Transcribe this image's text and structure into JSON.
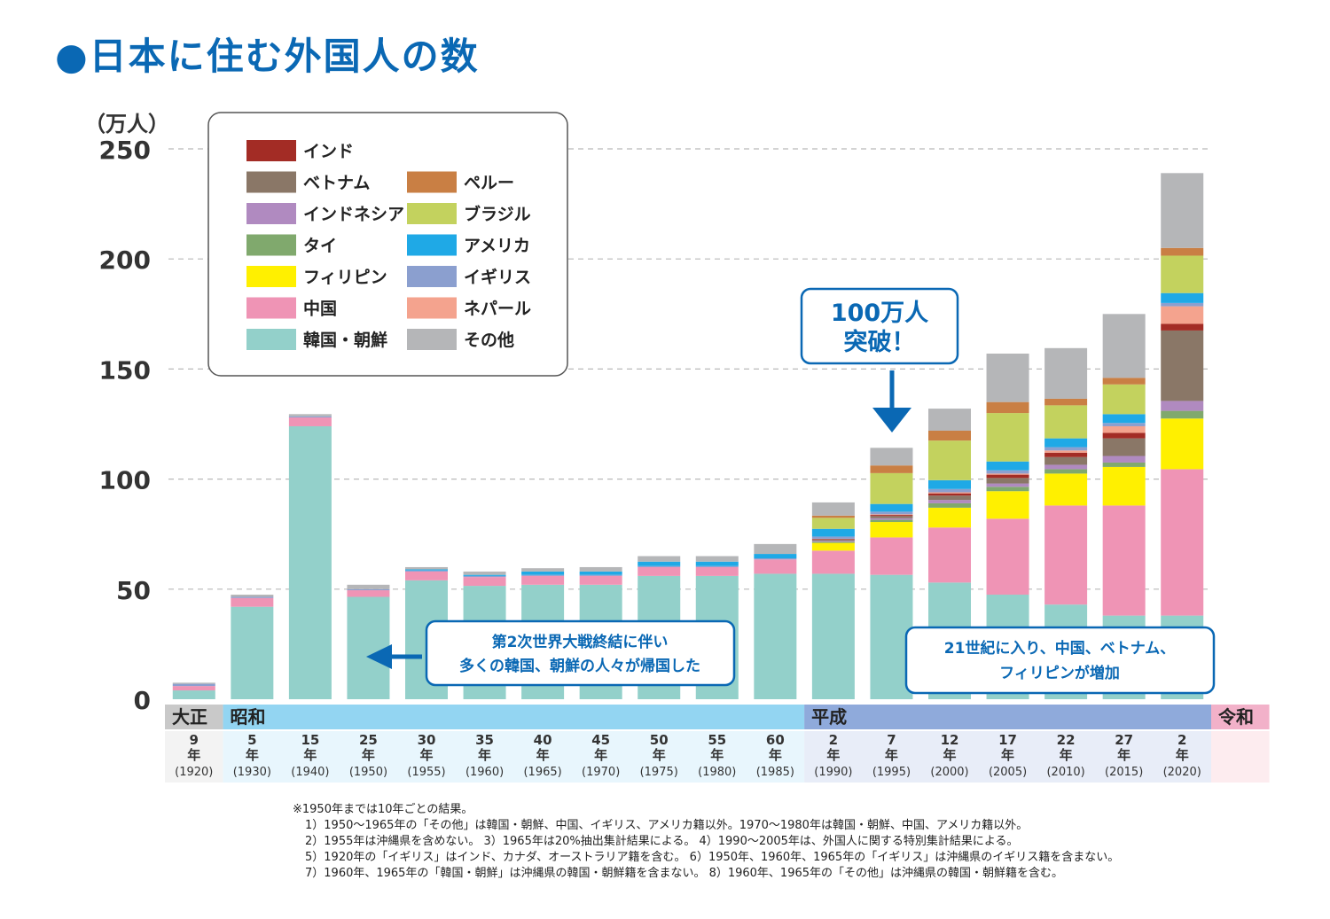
{
  "title": "●日本に住む外国人の数",
  "chart_data": {
    "type": "bar",
    "stacked": true,
    "title": "●日本に住む外国人の数",
    "ylabel": "（万人）",
    "ylim": [
      0,
      250
    ],
    "yticks": [
      0,
      50,
      100,
      150,
      200,
      250
    ],
    "grid": true,
    "legend_position": "top-left",
    "eras": [
      {
        "label": "大正",
        "color": "#c9c9c9",
        "from": 0,
        "to": 0
      },
      {
        "label": "昭和",
        "color": "#93d5f2",
        "from": 1,
        "to": 10
      },
      {
        "label": "平成",
        "color": "#8faadb",
        "from": 11,
        "to": 17
      },
      {
        "label": "令和",
        "color": "#f2b1c9",
        "from": 18,
        "to": 18
      }
    ],
    "categories": [
      {
        "num": "9",
        "unit": "年",
        "year": "(1920)"
      },
      {
        "num": "5",
        "unit": "年",
        "year": "(1930)"
      },
      {
        "num": "15",
        "unit": "年",
        "year": "(1940)"
      },
      {
        "num": "25",
        "unit": "年",
        "year": "(1950)"
      },
      {
        "num": "30",
        "unit": "年",
        "year": "(1955)"
      },
      {
        "num": "35",
        "unit": "年",
        "year": "(1960)"
      },
      {
        "num": "40",
        "unit": "年",
        "year": "(1965)"
      },
      {
        "num": "45",
        "unit": "年",
        "year": "(1970)"
      },
      {
        "num": "50",
        "unit": "年",
        "year": "(1975)"
      },
      {
        "num": "55",
        "unit": "年",
        "year": "(1980)"
      },
      {
        "num": "60",
        "unit": "年",
        "year": "(1985)"
      },
      {
        "num": "2",
        "unit": "年",
        "year": "(1990)"
      },
      {
        "num": "7",
        "unit": "年",
        "year": "(1995)"
      },
      {
        "num": "12",
        "unit": "年",
        "year": "(2000)"
      },
      {
        "num": "17",
        "unit": "年",
        "year": "(2005)"
      },
      {
        "num": "22",
        "unit": "年",
        "year": "(2010)"
      },
      {
        "num": "27",
        "unit": "年",
        "year": "(2015)"
      },
      {
        "num": "2",
        "unit": "年",
        "year": "(2020)"
      }
    ],
    "series": [
      {
        "name": "韓国・朝鮮",
        "color": "#93d0ca",
        "values": [
          4.0,
          42.0,
          124.0,
          46.5,
          54.0,
          51.5,
          52.0,
          52.0,
          56.0,
          56.0,
          57.0,
          57.0,
          56.5,
          53.0,
          47.5,
          43.0,
          38.0,
          38.0
        ]
      },
      {
        "name": "中国",
        "color": "#ef94b5",
        "values": [
          2.0,
          4.0,
          4.0,
          3.0,
          4.0,
          4.0,
          4.0,
          4.0,
          4.0,
          4.0,
          6.5,
          10.5,
          17.0,
          25.0,
          34.5,
          45.0,
          50.0,
          66.5
        ]
      },
      {
        "name": "フィリピン",
        "color": "#fff000",
        "values": [
          0,
          0,
          0,
          0,
          0,
          0,
          0,
          0,
          0,
          0,
          0,
          3.5,
          7.0,
          9.0,
          12.5,
          14.5,
          17.5,
          23.0
        ]
      },
      {
        "name": "タイ",
        "color": "#80a96d",
        "values": [
          0,
          0,
          0,
          0,
          0,
          0,
          0,
          0,
          0,
          0,
          0,
          0.5,
          1.0,
          2.0,
          2.0,
          2.0,
          2.0,
          3.5
        ]
      },
      {
        "name": "インドネシア",
        "color": "#b08ac0",
        "values": [
          0,
          0,
          0,
          0,
          0,
          0,
          0,
          0,
          0,
          0,
          0,
          0.5,
          0.7,
          1.5,
          1.5,
          2.0,
          3.0,
          4.5
        ]
      },
      {
        "name": "ベトナム",
        "color": "#8a7767",
        "values": [
          0,
          0,
          0,
          0,
          0,
          0,
          0,
          0,
          0,
          0,
          0,
          0.5,
          1.0,
          2.0,
          2.5,
          3.5,
          8.0,
          32.0
        ]
      },
      {
        "name": "インド",
        "color": "#a32c25",
        "values": [
          0,
          0,
          0,
          0,
          0,
          0,
          0,
          0,
          0,
          0,
          0,
          0.3,
          0.5,
          1.0,
          1.5,
          2.0,
          2.5,
          3.0
        ]
      },
      {
        "name": "ネパール",
        "color": "#f4a38e",
        "values": [
          0,
          0,
          0,
          0,
          0,
          0,
          0,
          0,
          0,
          0,
          0,
          0.1,
          0.3,
          0.5,
          0.5,
          1.0,
          3.0,
          8.0
        ]
      },
      {
        "name": "イギリス",
        "color": "#8b9fcf",
        "values": [
          1.0,
          0.5,
          0.5,
          0.5,
          0.5,
          0.5,
          0.5,
          0.5,
          0.5,
          0.5,
          0.5,
          1.0,
          1.2,
          1.5,
          1.5,
          1.5,
          1.5,
          1.5
        ]
      },
      {
        "name": "アメリカ",
        "color": "#1fa9e6",
        "values": [
          0,
          0,
          0,
          0,
          0.5,
          0.5,
          1.5,
          1.5,
          2.0,
          2.0,
          2.0,
          3.5,
          3.5,
          4.0,
          4.0,
          4.0,
          4.0,
          4.5
        ]
      },
      {
        "name": "ブラジル",
        "color": "#c3d25e",
        "values": [
          0,
          0,
          0,
          0,
          0,
          0,
          0,
          0,
          0,
          0,
          0,
          5.0,
          14.0,
          18.0,
          22.0,
          15.0,
          13.5,
          17.0
        ]
      },
      {
        "name": "ペルー",
        "color": "#c97f44",
        "values": [
          0,
          0,
          0,
          0,
          0,
          0,
          0,
          0,
          0,
          0,
          0,
          1.0,
          3.5,
          4.5,
          5.0,
          3.0,
          3.0,
          3.5
        ]
      },
      {
        "name": "その他",
        "color": "#b5b6b8",
        "values": [
          0.5,
          1.0,
          1.0,
          2.0,
          1.0,
          1.5,
          1.5,
          2.0,
          2.5,
          2.5,
          4.5,
          6.0,
          8.0,
          10.0,
          22.0,
          23.0,
          29.0,
          34.0
        ]
      }
    ],
    "legend_left": [
      "インド",
      "ベトナム",
      "インドネシア",
      "タイ",
      "フィリピン",
      "中国",
      "韓国・朝鮮"
    ],
    "legend_right": [
      "ペルー",
      "ブラジル",
      "アメリカ",
      "イギリス",
      "ネパール",
      "その他"
    ],
    "annotations": {
      "million": {
        "line1": "100万人",
        "line2": "突破！",
        "target_index": 12
      },
      "war": {
        "line1": "第2次世界大戦終結に伴い",
        "line2": "多くの韓国、朝鮮の人々が帰国した"
      },
      "century": {
        "line1": "21世紀に入り、中国、ベトナム、",
        "line2": "フィリピンが増加"
      }
    }
  },
  "notes": [
    "※1950年までは10年ごとの結果。",
    "1）1950～1965年の「その他」は韓国・朝鮮、中国、イギリス、アメリカ籍以外。1970～1980年は韓国・朝鮮、中国、アメリカ籍以外。",
    "2）1955年は沖縄県を含めない。 3）1965年は20%抽出集計結果による。 4）1990～2005年は、外国人に関する特別集計結果による。",
    "5）1920年の「イギリス」はインド、カナダ、オーストラリア籍を含む。 6）1950年、1960年、1965年の「イギリス」は沖縄県のイギリス籍を含まない。",
    "7）1960年、1965年の「韓国・朝鮮」は沖縄県の韓国・朝鮮籍を含まない。 8）1960年、1965年の「その他」は沖縄県の韓国・朝鮮籍を含む。"
  ]
}
